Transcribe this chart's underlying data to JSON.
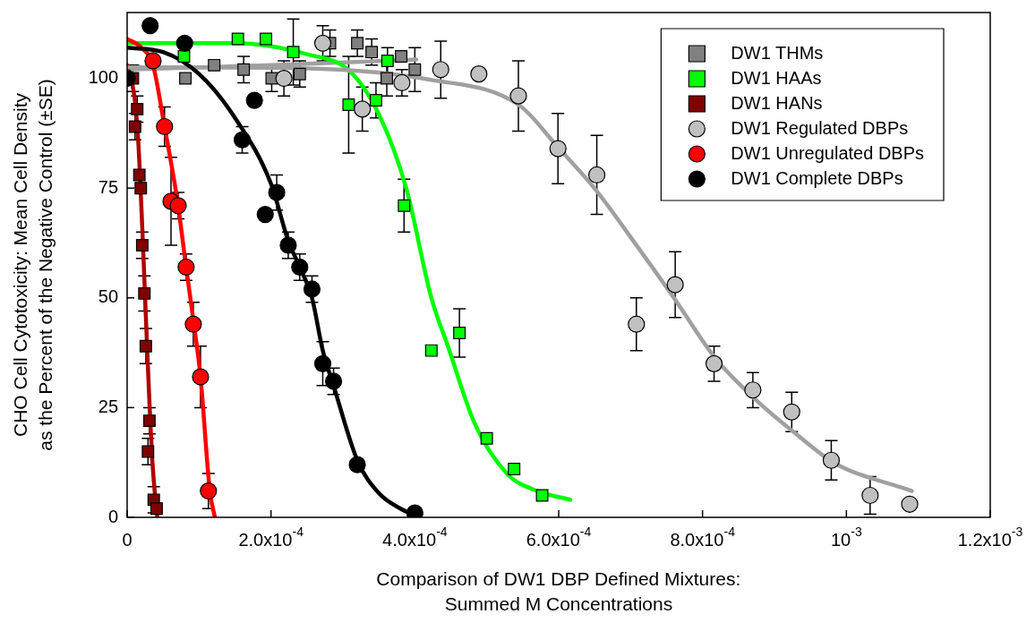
{
  "chart_data": {
    "type": "scatter",
    "xlabel": "Comparison of DW1 DBP Defined Mixtures:\nSummed M Concentrations",
    "ylabel": "CHO Cell Cytotoxicity: Mean Cell Density\nas the Percent of the Negative Control (±SE)",
    "xlim": [
      0,
      0.0012
    ],
    "xticks": [
      0,
      {
        "value": 0.0002,
        "label": "2.0x10$^{-4}$"
      },
      {
        "value": 0.0004,
        "label": "4.0x10$^{-4}$"
      },
      {
        "value": 0.0006,
        "label": "6.0x10$^{-4}$"
      },
      {
        "value": 0.0008,
        "label": "8.0x10$^{-4}$"
      },
      {
        "value": 0.001,
        "label": "10$^{-3}$"
      },
      {
        "value": 0.0012,
        "label": "1.2x10$^{-3}$"
      }
    ],
    "ylim": [
      0,
      115
    ],
    "yticks": [
      0,
      25,
      50,
      75,
      100
    ],
    "legend": "top right",
    "series": [
      {
        "name": "DW1 THMs",
        "color": "#808080",
        "marker": "square",
        "x": [
          8.1e-05,
          0.000121,
          0.000162,
          0.000201,
          0.00024,
          0.000282,
          0.00032,
          0.00034,
          0.000361,
          0.000381,
          0.0004
        ],
        "values": [
          100,
          103,
          102,
          100,
          101,
          108,
          108,
          106,
          100,
          105,
          102
        ],
        "errors": [
          null,
          null,
          3,
          3,
          3,
          3,
          3,
          3,
          4,
          null,
          5
        ]
      },
      {
        "name": "DW1 HAAs",
        "color": "#00ff00",
        "marker": "square",
        "x": [
          7.9e-05,
          0.000154,
          0.000193,
          0.000231,
          0.000308,
          0.000346,
          0.000362,
          0.000385,
          0.000423,
          0.000462,
          0.0005,
          0.000538,
          0.000577
        ],
        "values": [
          105,
          109,
          109,
          106,
          94,
          95,
          104,
          71,
          38,
          42,
          18,
          11,
          5
        ],
        "errors": [
          null,
          null,
          null,
          7.5,
          11,
          4,
          3,
          6,
          null,
          5.5,
          null,
          null,
          null
        ]
      },
      {
        "name": "DW1 HANs",
        "color": "#800000",
        "marker": "square",
        "x": [
          8e-06,
          1.1e-05,
          1.4e-05,
          1.7e-05,
          1.9e-05,
          2.1e-05,
          2.4e-05,
          2.6e-05,
          2.9e-05,
          3.1e-05,
          3.7e-05,
          4.1e-05
        ],
        "values": [
          100,
          89,
          93,
          78,
          75,
          62,
          51,
          39,
          15,
          22,
          4,
          2
        ],
        "errors": [
          3,
          3,
          3,
          null,
          null,
          3,
          4,
          4,
          3,
          3,
          3,
          null
        ]
      },
      {
        "name": "DW1 Regulated DBPs",
        "color": "#c0c0c0",
        "marker": "circle",
        "x": [
          0.000218,
          0.000272,
          0.000327,
          0.000382,
          0.000436,
          0.000489,
          0.000544,
          0.000599,
          0.000653,
          0.000708,
          0.000762,
          0.000816,
          0.00087,
          0.000924,
          0.000979,
          0.001033,
          0.001088
        ],
        "values": [
          100,
          108,
          93,
          99,
          102,
          101,
          96,
          84,
          78,
          44,
          53,
          35,
          29,
          24,
          13,
          5,
          3
        ],
        "errors": [
          4,
          4,
          5,
          3,
          6.5,
          null,
          8,
          8,
          9,
          6,
          7.5,
          4,
          4,
          4.5,
          4.5,
          4.3,
          null
        ]
      },
      {
        "name": "DW1 Unregulated DBPs",
        "color": "#ff0000",
        "marker": "circle",
        "x": [
          3.6e-05,
          5.2e-05,
          6.1e-05,
          7.1e-05,
          8.2e-05,
          9.2e-05,
          0.000102,
          0.000113
        ],
        "values": [
          104,
          89,
          72,
          71,
          57,
          44,
          32,
          6
        ],
        "errors": [
          null,
          4.5,
          10,
          3,
          3,
          5,
          7,
          4
        ]
      },
      {
        "name": "DW1 Complete DBPs",
        "color": "#000000",
        "marker": "circle",
        "x": [
          0,
          3.2e-05,
          8e-05,
          0.00016,
          0.000177,
          0.000192,
          0.000208,
          0.000224,
          0.00024,
          0.000257,
          0.000272,
          0.000287,
          0.00032,
          0.0004
        ],
        "values": [
          100,
          112,
          108,
          86,
          95,
          69,
          74,
          62,
          57,
          52,
          35,
          31,
          12,
          1
        ],
        "errors": [
          null,
          null,
          null,
          3,
          null,
          null,
          4,
          3,
          3,
          3,
          5,
          3,
          null,
          null
        ]
      },
      {
        "type": "line",
        "color": "#a0a0a0",
        "marker": "none",
        "x": [
          0,
          0.0002,
          0.000402
        ],
        "values": [
          102,
          103,
          104.3
        ]
      },
      {
        "type": "line",
        "color": "#00ff00",
        "marker": "none",
        "x": [
          0,
          0.00015,
          0.00025,
          0.000309,
          0.00035,
          0.000388,
          0.000423,
          0.000446,
          0.000483,
          0.000529,
          0.00057,
          0.000616
        ],
        "values": [
          108,
          108,
          105.5,
          101.7,
          91.8,
          75,
          50,
          39,
          21.5,
          9.8,
          6,
          4
        ]
      },
      {
        "type": "line",
        "color": "#b00000",
        "marker": "none",
        "x": [
          0,
          1e-05,
          1.5e-05,
          2e-05,
          2.5e-05,
          3e-05,
          3.5e-05,
          4e-05,
          4.2e-05
        ],
        "values": [
          103,
          96,
          87,
          70,
          50,
          30,
          13,
          3,
          0
        ]
      },
      {
        "type": "line",
        "color": "#a0a0a0",
        "marker": "none",
        "x": [
          0,
          0.000213,
          0.000421,
          0.000545,
          0.000599,
          0.000652,
          0.000708,
          0.000761,
          0.000818,
          0.000874,
          0.00093,
          0.000983,
          0.001091
        ],
        "values": [
          102.5,
          102.4,
          99.7,
          93.9,
          84.3,
          74.5,
          62,
          49.8,
          36.2,
          26.8,
          19,
          12.4,
          6
        ]
      },
      {
        "type": "line",
        "color": "#ff0000",
        "marker": "none",
        "x": [
          0,
          2e-05,
          3.6e-05,
          5.2e-05,
          7e-05,
          8.2e-05,
          9.2e-05,
          0.000102,
          0.000115,
          0.000122
        ],
        "values": [
          109,
          107,
          103,
          89,
          72,
          57,
          45,
          32,
          6,
          0
        ]
      },
      {
        "type": "line",
        "color": "#000000",
        "marker": "none",
        "x": [
          0,
          5e-05,
          0.0001,
          0.00015,
          0.0002,
          0.000224,
          0.00024,
          0.000257,
          0.000272,
          0.000287,
          0.00032,
          0.00035,
          0.00038,
          0.0004
        ],
        "values": [
          107,
          106,
          101,
          91,
          76,
          63,
          57,
          50,
          38,
          30,
          13,
          5.5,
          2,
          0.5
        ]
      }
    ]
  }
}
